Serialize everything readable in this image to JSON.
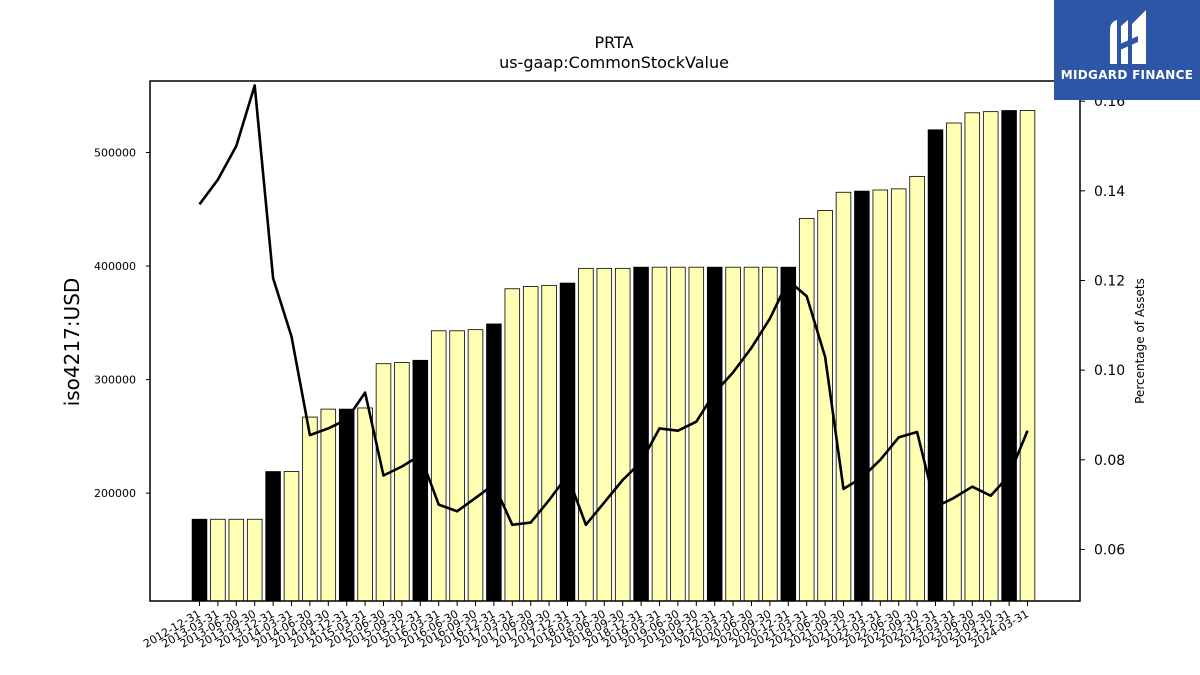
{
  "chart_data": {
    "type": "bar",
    "title": "PRTA",
    "subtitle": "us-gaap:CommonStockValue",
    "ylabel": "iso4217:USD",
    "y2label": "Percentage of Assets",
    "ylim": [
      105000,
      563000
    ],
    "y2lim": [
      0.0485,
      0.1645
    ],
    "yticks": [
      200000,
      300000,
      400000,
      500000
    ],
    "ytick_labels": [
      "200000",
      "300000",
      "400000",
      "500000"
    ],
    "y2ticks": [
      0.06,
      0.08,
      0.1,
      0.12,
      0.14,
      0.16
    ],
    "y2tick_labels": [
      "0.06",
      "0.08",
      "0.10",
      "0.12",
      "0.14",
      "0.16"
    ],
    "categories": [
      "2012-12-31",
      "2013-03-31",
      "2013-06-30",
      "2013-09-30",
      "2013-12-31",
      "2014-03-31",
      "2014-06-30",
      "2014-09-30",
      "2014-12-31",
      "2015-03-31",
      "2015-06-30",
      "2015-09-30",
      "2015-12-31",
      "2016-03-31",
      "2016-06-30",
      "2016-09-30",
      "2016-12-31",
      "2017-03-31",
      "2017-06-30",
      "2017-09-30",
      "2017-12-31",
      "2018-03-31",
      "2018-06-30",
      "2018-09-30",
      "2018-12-31",
      "2019-03-31",
      "2019-06-30",
      "2019-09-30",
      "2019-12-31",
      "2020-03-31",
      "2020-06-30",
      "2020-09-30",
      "2020-12-31",
      "2021-03-31",
      "2021-06-30",
      "2021-09-30",
      "2021-12-31",
      "2022-03-31",
      "2022-06-30",
      "2022-09-30",
      "2022-12-31",
      "2023-03-31",
      "2023-06-30",
      "2023-09-30",
      "2023-12-31",
      "2024-03-31"
    ],
    "series": [
      {
        "values": [
          177000,
          177000,
          177000,
          177000,
          219000,
          219000,
          267000,
          274000,
          274000,
          275000,
          314000,
          315000,
          317000,
          343000,
          343000,
          344000,
          349000,
          380000,
          382000,
          383000,
          385000,
          398000,
          398000,
          398000,
          399000,
          399000,
          399000,
          399000,
          399000,
          399000,
          399000,
          399000,
          399000,
          442000,
          449000,
          465000,
          466000,
          467000,
          468000,
          479000,
          520000,
          526000,
          535000,
          536000,
          537000,
          537000
        ],
        "colors": [
          "#000000",
          "#ffffb3",
          "#ffffb3",
          "#ffffb3",
          "#000000",
          "#ffffb3",
          "#ffffb3",
          "#ffffb3",
          "#000000",
          "#ffffb3",
          "#ffffb3",
          "#ffffb3",
          "#000000",
          "#ffffb3",
          "#ffffb3",
          "#ffffb3",
          "#000000",
          "#ffffb3",
          "#ffffb3",
          "#ffffb3",
          "#000000",
          "#ffffb3",
          "#ffffb3",
          "#ffffb3",
          "#000000",
          "#ffffb3",
          "#ffffb3",
          "#ffffb3",
          "#000000",
          "#ffffb3",
          "#ffffb3",
          "#ffffb3",
          "#000000",
          "#ffffb3",
          "#ffffb3",
          "#ffffb3",
          "#000000",
          "#ffffb3",
          "#ffffb3",
          "#ffffb3",
          "#000000",
          "#ffffb3",
          "#ffffb3",
          "#ffffb3",
          "#000000",
          "#ffffb3"
        ]
      },
      {
        "type": "line",
        "axis": "right",
        "values": [
          0.137,
          0.1425,
          0.15,
          0.1635,
          0.1205,
          0.1075,
          0.0855,
          0.087,
          0.089,
          0.095,
          0.0765,
          0.0785,
          0.081,
          0.07,
          0.0685,
          0.0715,
          0.0745,
          0.0655,
          0.066,
          0.071,
          0.0765,
          0.0655,
          0.0705,
          0.0755,
          0.0795,
          0.087,
          0.0865,
          0.0885,
          0.095,
          0.0995,
          0.105,
          0.1115,
          0.12,
          0.1165,
          0.103,
          0.0735,
          0.076,
          0.08,
          0.085,
          0.0862,
          0.0695,
          0.0715,
          0.074,
          0.072,
          0.0765,
          0.0865
        ]
      }
    ],
    "colors": {
      "bar_highlight": "#000000",
      "bar_default": "#ffffb3",
      "line": "#000000"
    }
  },
  "logo": {
    "text": "MIDGARD FINANCE",
    "bg": "#2e56a6"
  }
}
